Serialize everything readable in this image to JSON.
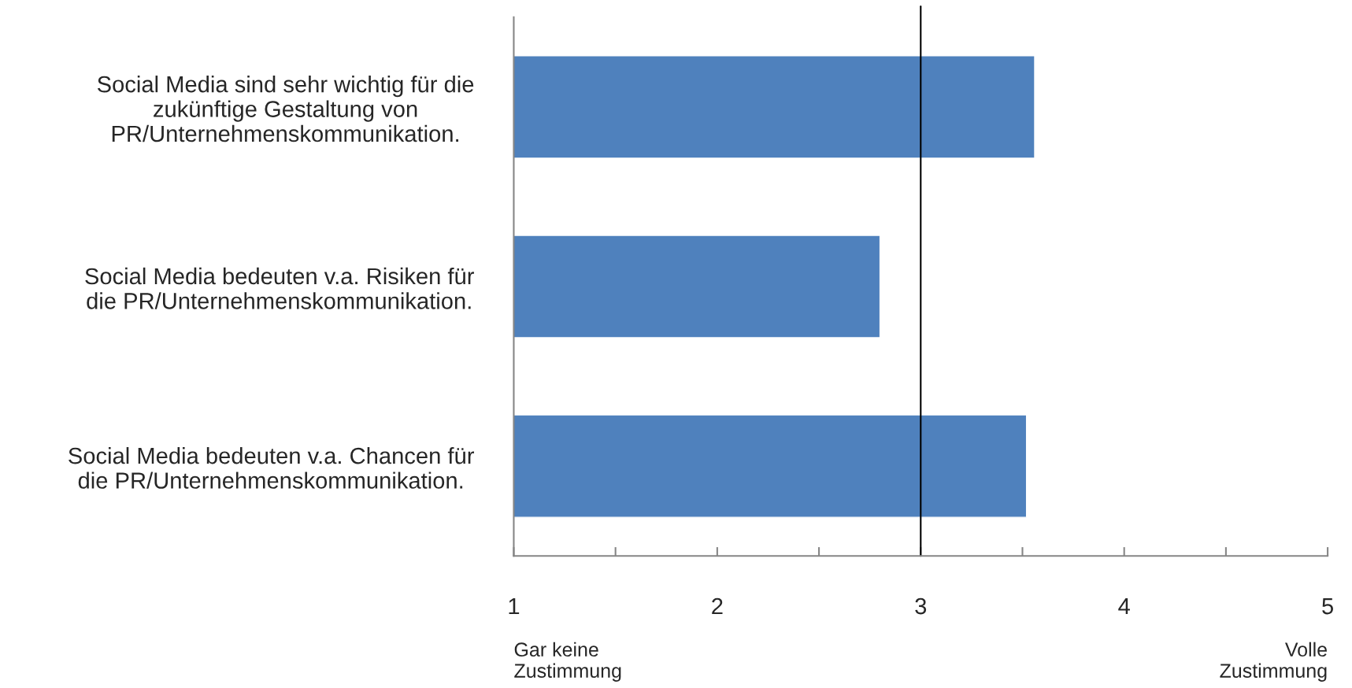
{
  "chart_data": {
    "type": "bar",
    "orientation": "horizontal",
    "categories": [
      "Social Media sind sehr wichtig für die\nzukünftige Gestaltung von\nPR/Unternehmenskommunikation.",
      "Social Media bedeuten v.a. Risiken für\ndie PR/Unternehmenskommunikation.",
      "Social Media bedeuten v.a. Chancen für\ndie PR/Unternehmenskommunikation."
    ],
    "values": [
      3.56,
      2.8,
      3.52
    ],
    "color": "#4f81bd",
    "xlim": [
      1,
      5
    ],
    "xticks": [
      1,
      {
        "value": 1.5,
        "label": null
      },
      2,
      {
        "value": 2.5,
        "label": null
      },
      3,
      {
        "value": 3.5,
        "label": null
      },
      4,
      {
        "value": 4.5,
        "label": null
      },
      5
    ],
    "ref_lines": [
      {
        "axis": "x",
        "value": 3,
        "color": "#000000"
      }
    ],
    "annotations": [
      "Gar keine\nZustimmung",
      "Volle\nZustimmung"
    ],
    "grid": false,
    "legend": false
  }
}
